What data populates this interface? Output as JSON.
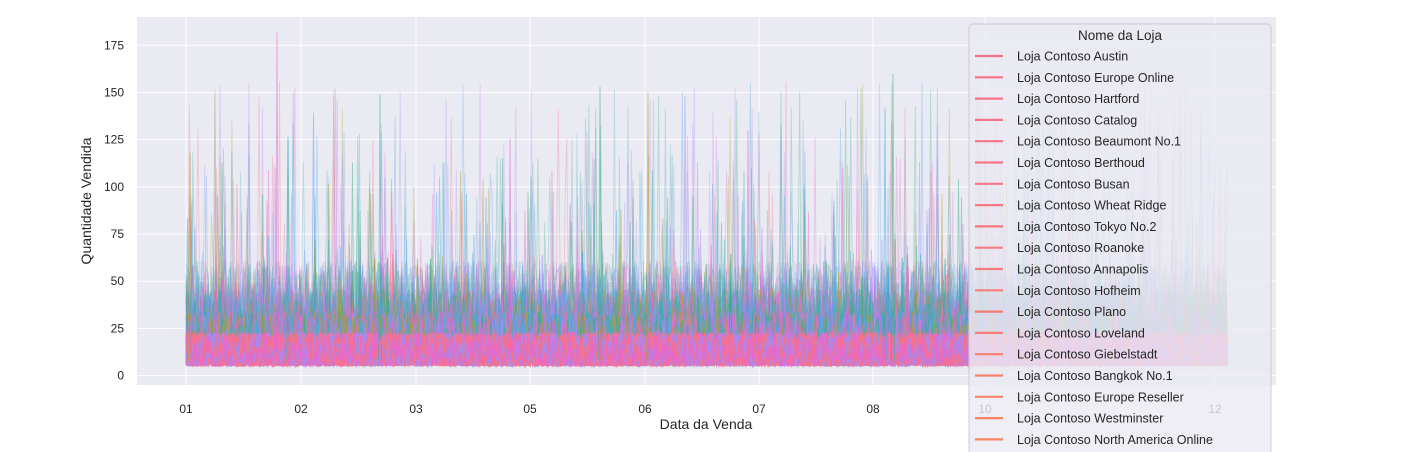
{
  "chart_data": {
    "type": "line",
    "title": "",
    "xlabel": "Data da Venda",
    "ylabel": "Quantidade Vendida",
    "ylim": [
      -5,
      190
    ],
    "y_ticks": [
      0,
      25,
      50,
      75,
      100,
      125,
      150,
      175
    ],
    "x_ticks": [
      "01",
      "02",
      "03",
      "05",
      "06",
      "07",
      "08",
      "10",
      "12"
    ],
    "grid": true,
    "background": "#eaeaf2",
    "legend_title": "Nome da Loja",
    "legend_placement": "right",
    "series": [
      {
        "name": "Loja Contoso Austin",
        "color": "#f77189"
      },
      {
        "name": "Loja Contoso Europe Online",
        "color": "#f77189"
      },
      {
        "name": "Loja Contoso Hartford",
        "color": "#f7728a"
      },
      {
        "name": "Loja Contoso Catalog",
        "color": "#f7738a"
      },
      {
        "name": "Loja Contoso Beaumont No.1",
        "color": "#f7748b"
      },
      {
        "name": "Loja Contoso Berthoud",
        "color": "#f7758a"
      },
      {
        "name": "Loja Contoso Busan",
        "color": "#f77589"
      },
      {
        "name": "Loja Contoso Wheat Ridge",
        "color": "#f77787"
      },
      {
        "name": "Loja Contoso Tokyo No.2",
        "color": "#f77885"
      },
      {
        "name": "Loja Contoso Roanoke",
        "color": "#f77a82"
      },
      {
        "name": "Loja Contoso Annapolis",
        "color": "#f77b80"
      },
      {
        "name": "Loja Contoso Hofheim",
        "color": "#f77c7c"
      },
      {
        "name": "Loja Contoso Plano",
        "color": "#f77d79"
      },
      {
        "name": "Loja Contoso Loveland",
        "color": "#f77e76"
      },
      {
        "name": "Loja Contoso Giebelstadt",
        "color": "#f78072"
      },
      {
        "name": "Loja Contoso Bangkok No.1",
        "color": "#f7816e"
      },
      {
        "name": "Loja Contoso Europe Reseller",
        "color": "#f7836a"
      },
      {
        "name": "Loja Contoso Westminster",
        "color": "#f78566"
      },
      {
        "name": "Loja Contoso North America Online",
        "color": "#f78662"
      }
    ],
    "overlay_colors": [
      "#3ba3ec",
      "#33b07a",
      "#4fb0c6",
      "#a48cf4",
      "#ae9d31",
      "#e866d1",
      "#5ea8f0",
      "#36ada4",
      "#cc7af4",
      "#f77189"
    ]
  }
}
